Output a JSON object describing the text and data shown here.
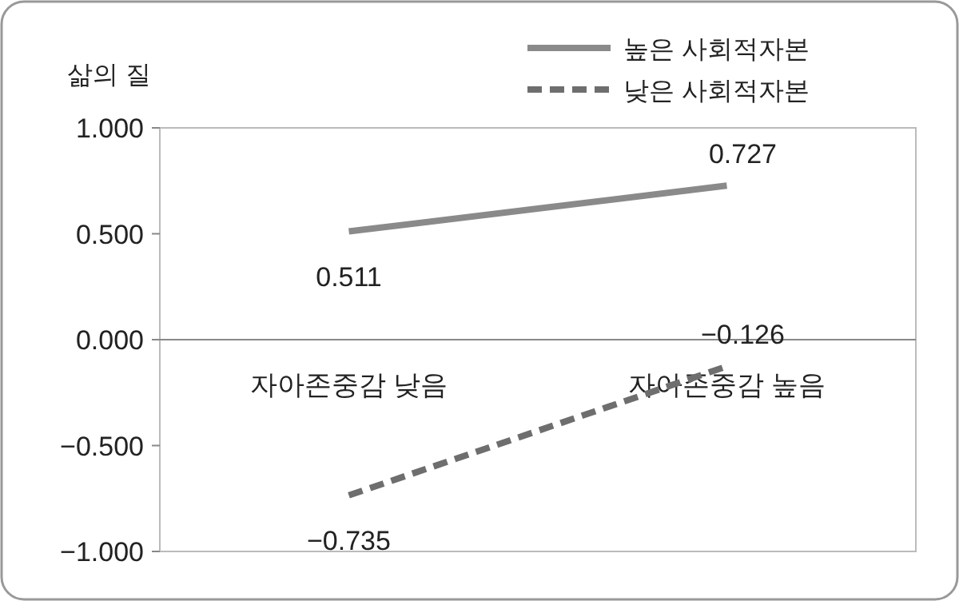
{
  "chart_data": {
    "type": "line",
    "ylabel": "삶의 질",
    "categories": [
      "자아존중감 낮음",
      "자아존중감 높음"
    ],
    "series": [
      {
        "name": "높은 사회적자본",
        "color": "#8a8a8a",
        "line_style": "solid",
        "values": [
          0.511,
          0.727
        ]
      },
      {
        "name": "낮은 사회적자본",
        "color": "#6e6e6e",
        "line_style": "dashed",
        "values": [
          -0.735,
          -0.126
        ]
      }
    ],
    "ylim": [
      -1,
      1
    ],
    "yticks": [
      {
        "value": 1,
        "label": "1.000"
      },
      {
        "value": 0.5,
        "label": "0.500"
      },
      {
        "value": 0,
        "label": "0.000"
      },
      {
        "value": -0.5,
        "label": "−0.500"
      },
      {
        "value": -1,
        "label": "−1.000"
      }
    ],
    "data_labels": true,
    "legend": "top right",
    "grid": false
  }
}
